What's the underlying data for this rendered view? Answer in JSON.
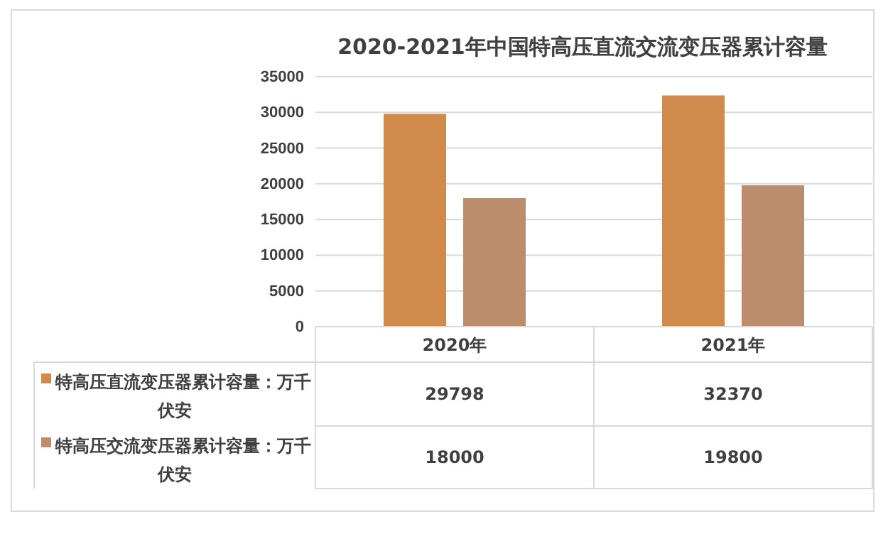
{
  "chart_data": {
    "type": "bar",
    "title": "2020-2021年中国特高压直流交流变压器累计容量",
    "categories": [
      "2020年",
      "2021年"
    ],
    "series": [
      {
        "name": "特高压直流变压器累计容量：万千伏安",
        "color": "#d08a4c",
        "values": [
          29798,
          32370
        ]
      },
      {
        "name": "特高压交流变压器累计容量：万千伏安",
        "color": "#bb8d6c",
        "values": [
          18000,
          19800
        ]
      }
    ],
    "ylim": [
      0,
      35000
    ],
    "yticks": [
      0,
      5000,
      10000,
      15000,
      20000,
      25000,
      30000,
      35000
    ],
    "grid": "y",
    "legend": "bottom",
    "data_labels": true
  }
}
